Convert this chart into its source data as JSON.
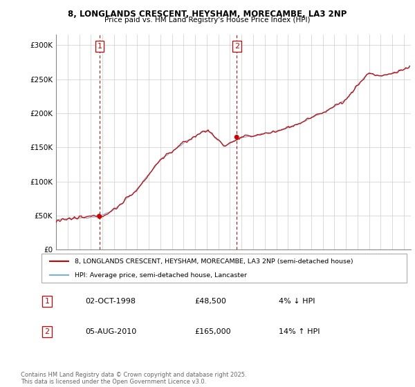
{
  "title1": "8, LONGLANDS CRESCENT, HEYSHAM, MORECAMBE, LA3 2NP",
  "title2": "Price paid vs. HM Land Registry's House Price Index (HPI)",
  "ylabel_ticks": [
    "£0",
    "£50K",
    "£100K",
    "£150K",
    "£200K",
    "£250K",
    "£300K"
  ],
  "ytick_vals": [
    0,
    50000,
    100000,
    150000,
    200000,
    250000,
    300000
  ],
  "ylim": [
    0,
    315000
  ],
  "legend_line1": "8, LONGLANDS CRESCENT, HEYSHAM, MORECAMBE, LA3 2NP (semi-detached house)",
  "legend_line2": "HPI: Average price, semi-detached house, Lancaster",
  "note1_date": "02-OCT-1998",
  "note1_price": "£48,500",
  "note1_hpi": "4% ↓ HPI",
  "note2_date": "05-AUG-2010",
  "note2_price": "£165,000",
  "note2_hpi": "14% ↑ HPI",
  "footer": "Contains HM Land Registry data © Crown copyright and database right 2025.\nThis data is licensed under the Open Government Licence v3.0.",
  "sale1_x": 1998.75,
  "sale1_y": 48500,
  "sale2_x": 2010.58,
  "sale2_y": 165000,
  "line_color_red": "#cc0000",
  "line_color_blue": "#7ab0d4",
  "background_color": "#ffffff",
  "grid_color": "#cccccc",
  "vline_color": "#cc0000",
  "xlim_left": 1995.0,
  "xlim_right": 2025.6
}
